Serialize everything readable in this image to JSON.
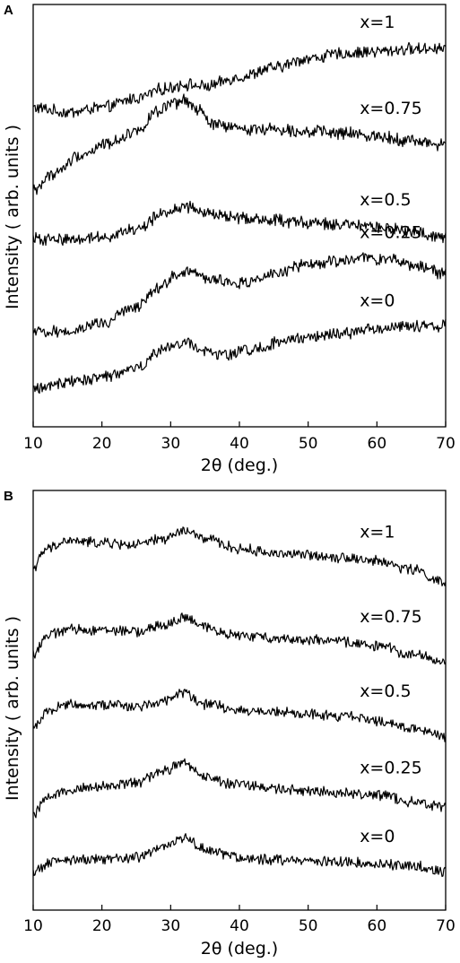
{
  "chart_data": [
    {
      "type": "line",
      "panel_label": "A",
      "xlabel": "2θ (deg.)",
      "ylabel": "Intensity ( arb. units )",
      "xlim": [
        10,
        70
      ],
      "x_ticks": [
        "10",
        "20",
        "30",
        "40",
        "50",
        "60",
        "70"
      ],
      "y_ticks_shown": false,
      "grid": false,
      "series": [
        {
          "name": "x=1",
          "label_x": 57.5,
          "x": [
            10,
            15,
            20,
            25,
            29,
            32,
            35,
            40,
            45,
            50,
            55,
            60,
            65,
            70
          ],
          "values": [
            6.8,
            6.7,
            6.8,
            7.0,
            7.2,
            7.3,
            7.25,
            7.45,
            7.65,
            7.85,
            7.95,
            8.0,
            8.05,
            8.08
          ]
        },
        {
          "name": "x=0.75",
          "label_x": 57.5,
          "x": [
            10,
            13,
            17,
            21,
            25,
            28,
            30,
            32,
            34,
            36,
            40,
            45,
            50,
            55,
            60,
            65,
            70
          ],
          "values": [
            5.05,
            5.4,
            5.8,
            6.05,
            6.3,
            6.7,
            6.85,
            6.95,
            6.75,
            6.45,
            6.35,
            6.35,
            6.3,
            6.25,
            6.2,
            6.1,
            6.0
          ]
        },
        {
          "name": "x=0.5",
          "label_x": 57.5,
          "x": [
            10,
            15,
            20,
            25,
            29,
            32,
            35,
            40,
            45,
            50,
            55,
            60,
            65,
            70
          ],
          "values": [
            4.0,
            4.0,
            4.05,
            4.2,
            4.55,
            4.7,
            4.55,
            4.45,
            4.4,
            4.35,
            4.3,
            4.25,
            4.15,
            4.05
          ]
        },
        {
          "name": "x=0.25",
          "label_x": 57.5,
          "x": [
            10,
            15,
            20,
            25,
            28,
            31,
            33,
            35,
            40,
            45,
            50,
            55,
            58,
            62,
            66,
            70
          ],
          "values": [
            2.0,
            2.05,
            2.2,
            2.55,
            2.95,
            3.25,
            3.35,
            3.15,
            3.05,
            3.25,
            3.45,
            3.55,
            3.6,
            3.55,
            3.45,
            3.25
          ]
        },
        {
          "name": "x=0",
          "label_x": 57.5,
          "x": [
            10,
            15,
            20,
            25,
            29,
            32,
            35,
            38,
            42,
            46,
            50,
            55,
            60,
            65,
            70
          ],
          "values": [
            0.8,
            0.95,
            1.05,
            1.25,
            1.65,
            1.8,
            1.6,
            1.55,
            1.65,
            1.8,
            1.9,
            2.0,
            2.1,
            2.15,
            2.15
          ]
        }
      ]
    },
    {
      "type": "line",
      "panel_label": "B",
      "xlabel": "2θ (deg.)",
      "ylabel": "Intensity ( arb. units )",
      "xlim": [
        10,
        70
      ],
      "x_ticks": [
        "10",
        "20",
        "30",
        "40",
        "50",
        "60",
        "70"
      ],
      "y_ticks_shown": false,
      "grid": false,
      "series": [
        {
          "name": "x=1",
          "label_x": 57.5,
          "x": [
            10,
            12,
            15,
            20,
            25,
            29,
            32,
            35,
            40,
            45,
            50,
            55,
            60,
            65,
            70
          ],
          "values": [
            8.5,
            8.95,
            9.15,
            9.1,
            9.05,
            9.2,
            9.4,
            9.2,
            8.95,
            8.85,
            8.8,
            8.75,
            8.65,
            8.45,
            8.1
          ]
        },
        {
          "name": "x=0.75",
          "label_x": 57.5,
          "x": [
            10,
            12,
            15,
            20,
            25,
            29,
            32,
            35,
            40,
            45,
            50,
            55,
            60,
            65,
            70
          ],
          "values": [
            6.35,
            6.8,
            6.95,
            6.95,
            6.9,
            7.05,
            7.25,
            7.0,
            6.8,
            6.75,
            6.7,
            6.65,
            6.55,
            6.35,
            6.15
          ]
        },
        {
          "name": "x=0.5",
          "label_x": 57.5,
          "x": [
            10,
            12,
            15,
            20,
            25,
            29,
            32,
            35,
            40,
            45,
            50,
            55,
            60,
            65,
            70
          ],
          "values": [
            4.5,
            4.95,
            5.1,
            5.1,
            5.05,
            5.2,
            5.4,
            5.1,
            4.95,
            4.9,
            4.85,
            4.8,
            4.7,
            4.5,
            4.3
          ]
        },
        {
          "name": "x=0.25",
          "label_x": 57.5,
          "x": [
            10,
            12,
            15,
            20,
            25,
            29,
            32,
            35,
            40,
            45,
            50,
            55,
            60,
            65,
            70
          ],
          "values": [
            2.35,
            2.8,
            3.0,
            3.05,
            3.15,
            3.45,
            3.65,
            3.3,
            3.1,
            3.0,
            2.95,
            2.9,
            2.85,
            2.7,
            2.55
          ]
        },
        {
          "name": "x=0",
          "label_x": 57.5,
          "x": [
            10,
            13,
            17,
            20,
            25,
            29,
            32,
            35,
            40,
            45,
            50,
            55,
            60,
            65,
            70
          ],
          "values": [
            0.95,
            1.2,
            1.25,
            1.25,
            1.3,
            1.55,
            1.8,
            1.5,
            1.3,
            1.25,
            1.2,
            1.2,
            1.15,
            1.1,
            0.95
          ]
        }
      ]
    }
  ]
}
